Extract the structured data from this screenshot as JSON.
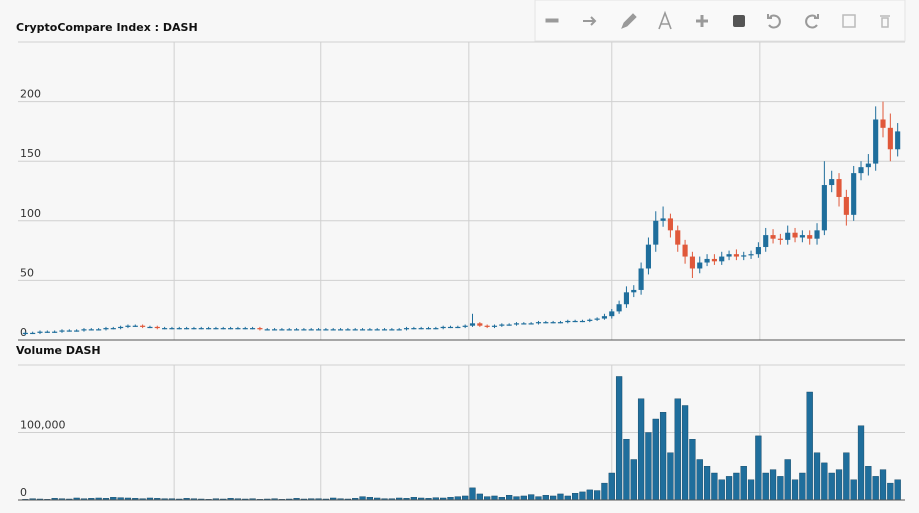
{
  "chart_data": [
    {
      "type": "candlestick",
      "title": "CryptoCompare Index : DASH",
      "x": [
        1,
        2,
        3,
        4,
        5,
        6,
        7,
        8,
        9,
        10,
        11,
        12,
        13,
        14,
        15,
        16,
        17,
        18,
        19,
        20,
        21,
        22,
        23,
        24,
        25,
        26,
        27,
        28,
        29,
        30,
        31,
        32,
        33,
        34,
        35,
        36,
        37,
        38,
        39,
        40,
        41,
        42,
        43,
        44,
        45,
        46,
        47,
        48,
        49,
        50,
        51,
        52,
        53,
        54,
        55,
        56,
        57,
        58,
        59,
        60,
        61,
        62,
        63,
        64,
        65,
        66,
        67,
        68,
        69,
        70,
        71,
        72,
        73,
        74,
        75,
        76,
        77,
        78,
        79,
        80,
        81,
        82,
        83,
        84,
        85,
        86,
        87,
        88,
        89,
        90,
        91,
        92,
        93,
        94,
        95,
        96,
        97,
        98,
        99,
        100,
        101,
        102,
        103,
        104,
        105,
        106,
        107,
        108,
        109,
        110,
        111,
        112,
        113,
        114,
        115,
        116,
        117,
        118,
        119,
        120
      ],
      "open": [
        5,
        6,
        6,
        7,
        7,
        7,
        8,
        8,
        8,
        9,
        9,
        9,
        10,
        10,
        11,
        12,
        12,
        11,
        11,
        10,
        10,
        10,
        10,
        10,
        10,
        10,
        10,
        10,
        10,
        10,
        10,
        10,
        10,
        9,
        9,
        9,
        9,
        9,
        9,
        9,
        9,
        9,
        9,
        9,
        9,
        9,
        9,
        9,
        9,
        9,
        9,
        9,
        9,
        10,
        10,
        10,
        10,
        10,
        11,
        11,
        11,
        12,
        14,
        12,
        11,
        12,
        13,
        13,
        14,
        14,
        14,
        15,
        15,
        15,
        15,
        16,
        16,
        16,
        17,
        18,
        20,
        24,
        30,
        40,
        42,
        60,
        80,
        100,
        102,
        92,
        80,
        70,
        60,
        65,
        68,
        66,
        70,
        72,
        70,
        71,
        72,
        78,
        88,
        85,
        84,
        90,
        86,
        88,
        85,
        92,
        130,
        135,
        120,
        105,
        140,
        145,
        148,
        185,
        178,
        160
      ],
      "high": [
        7,
        7,
        8,
        8,
        8,
        9,
        9,
        9,
        10,
        10,
        10,
        11,
        11,
        12,
        13,
        13,
        13,
        12,
        12,
        11,
        11,
        11,
        11,
        11,
        11,
        11,
        11,
        11,
        11,
        11,
        11,
        11,
        11,
        10,
        10,
        10,
        10,
        10,
        10,
        10,
        10,
        10,
        10,
        10,
        10,
        10,
        10,
        10,
        10,
        10,
        10,
        10,
        11,
        11,
        11,
        11,
        11,
        12,
        12,
        12,
        13,
        22,
        15,
        13,
        13,
        14,
        14,
        15,
        15,
        15,
        16,
        16,
        16,
        16,
        17,
        17,
        17,
        18,
        19,
        22,
        26,
        33,
        45,
        46,
        65,
        86,
        108,
        112,
        106,
        96,
        84,
        74,
        70,
        72,
        72,
        74,
        75,
        76,
        74,
        75,
        82,
        94,
        93,
        89,
        96,
        94,
        92,
        92,
        98,
        150,
        142,
        140,
        126,
        146,
        150,
        156,
        196,
        200,
        190,
        182
      ],
      "low": [
        4,
        5,
        5,
        6,
        6,
        6,
        7,
        7,
        7,
        8,
        8,
        8,
        9,
        9,
        10,
        11,
        10,
        10,
        9,
        9,
        9,
        9,
        9,
        9,
        9,
        9,
        9,
        9,
        9,
        9,
        9,
        9,
        8,
        8,
        8,
        8,
        8,
        8,
        8,
        8,
        8,
        8,
        8,
        8,
        8,
        8,
        8,
        8,
        8,
        8,
        8,
        8,
        8,
        9,
        9,
        9,
        9,
        9,
        10,
        10,
        10,
        11,
        11,
        10,
        10,
        11,
        12,
        12,
        13,
        13,
        13,
        14,
        14,
        14,
        14,
        15,
        15,
        15,
        16,
        17,
        18,
        22,
        27,
        36,
        38,
        55,
        74,
        95,
        86,
        74,
        64,
        52,
        56,
        62,
        63,
        63,
        67,
        67,
        67,
        68,
        69,
        74,
        81,
        80,
        80,
        82,
        82,
        80,
        80,
        88,
        124,
        112,
        96,
        100,
        134,
        138,
        142,
        170,
        150,
        154
      ],
      "close": [
        6,
        6,
        7,
        7,
        7,
        8,
        8,
        8,
        9,
        9,
        9,
        10,
        10,
        11,
        12,
        12,
        11,
        11,
        10,
        10,
        10,
        10,
        10,
        10,
        10,
        10,
        10,
        10,
        10,
        10,
        10,
        10,
        9,
        9,
        9,
        9,
        9,
        9,
        9,
        9,
        9,
        9,
        9,
        9,
        9,
        9,
        9,
        9,
        9,
        9,
        9,
        9,
        10,
        10,
        10,
        10,
        10,
        11,
        11,
        11,
        12,
        14,
        12,
        11,
        12,
        13,
        13,
        14,
        14,
        14,
        15,
        15,
        15,
        15,
        16,
        16,
        16,
        17,
        18,
        20,
        24,
        30,
        40,
        42,
        60,
        80,
        100,
        102,
        92,
        80,
        70,
        60,
        65,
        68,
        66,
        70,
        72,
        70,
        71,
        72,
        78,
        88,
        85,
        84,
        90,
        86,
        88,
        85,
        92,
        130,
        135,
        120,
        105,
        140,
        145,
        148,
        185,
        178,
        160,
        175
      ],
      "up_color": "#1f6e9c",
      "down_color": "#e0583a",
      "xlim": [
        0,
        121
      ],
      "xticks": [
        21.3,
        41.3,
        61.5,
        81,
        101.2
      ],
      "ylim": [
        0,
        250
      ],
      "yticks": [
        0,
        50,
        100,
        150,
        200
      ],
      "grid": true
    },
    {
      "type": "bar",
      "title": "Volume DASH",
      "x": [
        1,
        2,
        3,
        4,
        5,
        6,
        7,
        8,
        9,
        10,
        11,
        12,
        13,
        14,
        15,
        16,
        17,
        18,
        19,
        20,
        21,
        22,
        23,
        24,
        25,
        26,
        27,
        28,
        29,
        30,
        31,
        32,
        33,
        34,
        35,
        36,
        37,
        38,
        39,
        40,
        41,
        42,
        43,
        44,
        45,
        46,
        47,
        48,
        49,
        50,
        51,
        52,
        53,
        54,
        55,
        56,
        57,
        58,
        59,
        60,
        61,
        62,
        63,
        64,
        65,
        66,
        67,
        68,
        69,
        70,
        71,
        72,
        73,
        74,
        75,
        76,
        77,
        78,
        79,
        80,
        81,
        82,
        83,
        84,
        85,
        86,
        87,
        88,
        89,
        90,
        91,
        92,
        93,
        94,
        95,
        96,
        97,
        98,
        99,
        100,
        101,
        102,
        103,
        104,
        105,
        106,
        107,
        108,
        109,
        110,
        111,
        112,
        113,
        114,
        115,
        116,
        117,
        118,
        119,
        120
      ],
      "values": [
        1000,
        2000,
        1500,
        1000,
        2500,
        2000,
        1500,
        3000,
        2000,
        2500,
        3000,
        2500,
        4000,
        3500,
        3000,
        2500,
        2000,
        3000,
        2500,
        2000,
        2000,
        1500,
        2500,
        2000,
        1500,
        1000,
        2000,
        1500,
        2500,
        2000,
        1500,
        2000,
        1000,
        1500,
        2000,
        1000,
        1500,
        2500,
        1500,
        2000,
        2000,
        1500,
        3000,
        2000,
        1500,
        2500,
        5000,
        4000,
        3000,
        2000,
        2000,
        3000,
        2500,
        4000,
        3000,
        2500,
        3500,
        3000,
        4000,
        5000,
        6000,
        18000,
        9000,
        5000,
        6000,
        4000,
        7000,
        5000,
        6000,
        8000,
        5000,
        7000,
        6000,
        9000,
        6000,
        10000,
        12000,
        15000,
        14000,
        25000,
        40000,
        183000,
        90000,
        60000,
        150000,
        100000,
        120000,
        130000,
        70000,
        150000,
        140000,
        90000,
        60000,
        50000,
        40000,
        30000,
        35000,
        40000,
        50000,
        30000,
        95000,
        40000,
        45000,
        35000,
        60000,
        30000,
        40000,
        160000,
        70000,
        55000,
        40000,
        45000,
        70000,
        30000,
        110000,
        50000,
        35000,
        45000,
        25000,
        30000
      ],
      "color": "#1f6e9c",
      "xlim": [
        0,
        121
      ],
      "xticks": [
        21.3,
        41.3,
        61.5,
        81,
        101.2
      ],
      "ylim": [
        0,
        200000
      ],
      "yticks": [
        0,
        {
          "value": 100000,
          "label": "100,000"
        }
      ],
      "grid": true
    }
  ]
}
